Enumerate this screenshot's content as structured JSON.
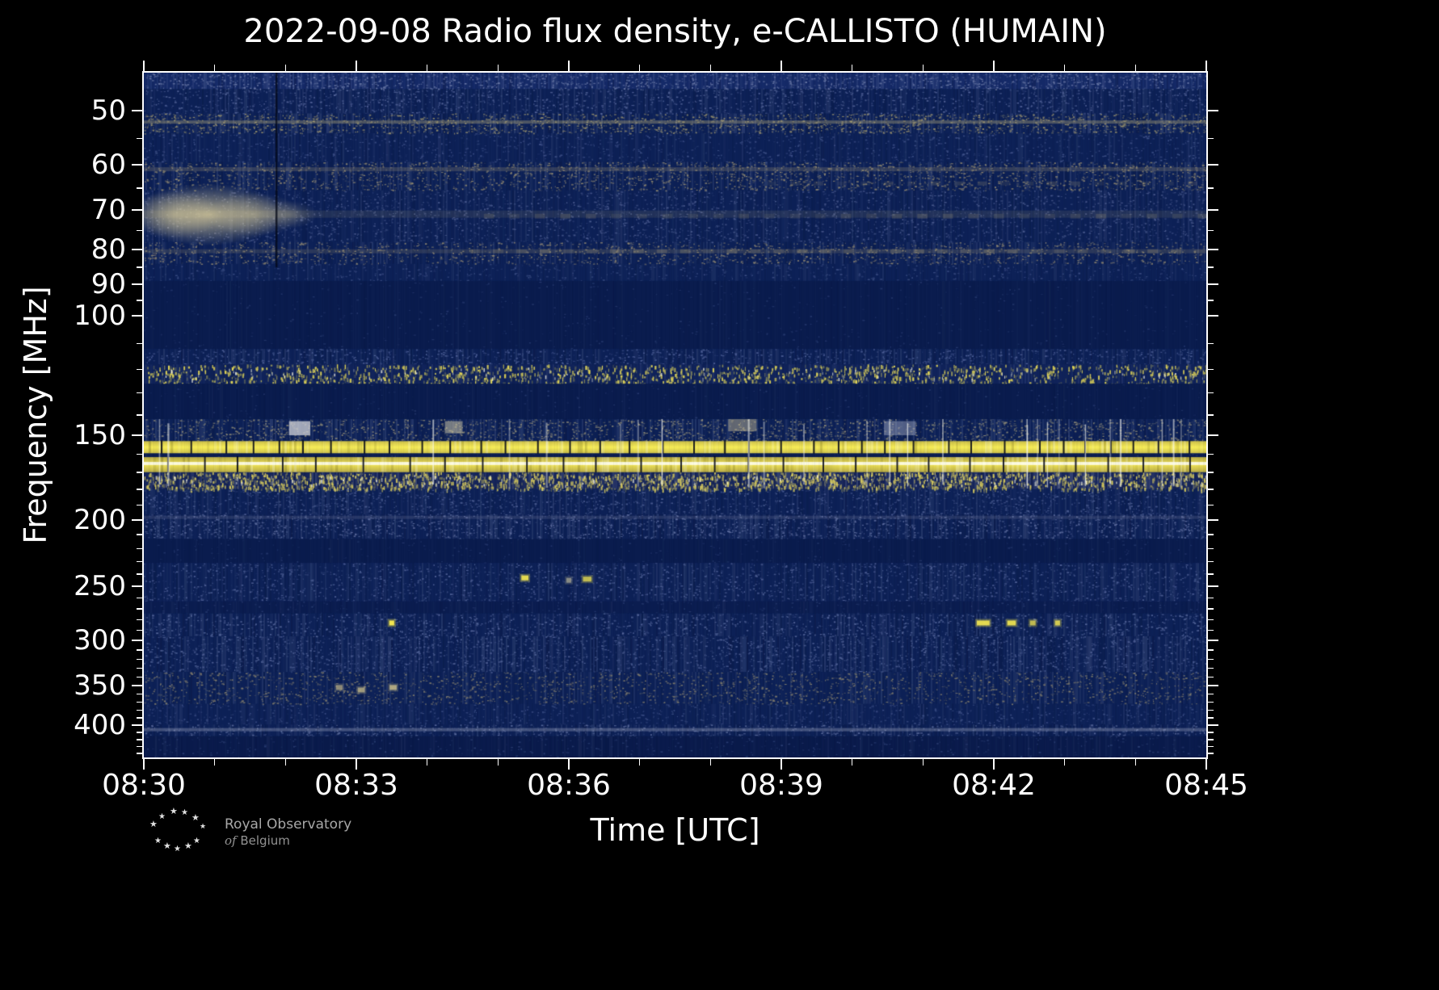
{
  "chart_data": {
    "type": "heatmap",
    "variant": "radio-spectrogram",
    "title": "2022-09-08 Radio flux density, e-CALLISTO (HUMAIN)",
    "xlabel": "Time [UTC]",
    "ylabel": "Frequency [MHz]",
    "x_ticks": [
      "08:30",
      "08:33",
      "08:36",
      "08:39",
      "08:42",
      "08:45"
    ],
    "x_minor_ticks_min": [
      1,
      2,
      4,
      5,
      7,
      8,
      10,
      11,
      13,
      14
    ],
    "duration_min": 15,
    "time_range_utc": [
      "08:30",
      "08:45"
    ],
    "y_ticks": [
      50,
      60,
      70,
      80,
      90,
      100,
      150,
      200,
      250,
      300,
      350,
      400
    ],
    "y_minor_ticks": [
      55,
      65,
      75,
      85,
      95,
      110,
      120,
      130,
      140,
      160,
      170,
      180,
      190,
      210,
      220,
      230,
      240,
      260,
      270,
      280,
      290,
      310,
      320,
      330,
      340,
      360,
      370,
      380,
      390,
      410,
      420,
      430,
      440
    ],
    "y_scale": "log",
    "y_axis_inverted": true,
    "freq_range_mhz": [
      44,
      446
    ],
    "grid": false,
    "legend": "none",
    "colors": {
      "figure_background": "#000000",
      "plot_base": "#0d2157",
      "quiet_band": "#0a1c4e",
      "noise_blue": "#51629a",
      "noise_tan": "#8f8770",
      "bright_tan": "#d8cb9b",
      "rfi_yellow": "#f7ed58",
      "frame": "#ffffff",
      "text": "#ffffff"
    },
    "rfi_lines_mhz": [
      52,
      61,
      71,
      80,
      120,
      156,
      165,
      175,
      243,
      283,
      406
    ],
    "bands": [
      {
        "f1": 44,
        "f2": 46.5,
        "style": "noise",
        "base": "#152a68",
        "speckle": "#6d7ba8",
        "density": 0.5,
        "col": 0.4,
        "colA": 0.12
      },
      {
        "f1": 46.5,
        "f2": 50.5,
        "style": "noise",
        "speckle": "#55659a",
        "density": 0.32,
        "col": 0.3,
        "colA": 0.09
      },
      {
        "f1": 50.5,
        "f2": 54,
        "style": "noise",
        "speckle": "#9a926e",
        "density": 0.5,
        "col": 0.38,
        "colA": 0.13,
        "hline": {
          "f": 52,
          "color": "#b0a678",
          "alpha": 0.4,
          "h": 4
        }
      },
      {
        "f1": 54,
        "f2": 59.5,
        "style": "noise",
        "speckle": "#41538a",
        "density": 0.22,
        "col": 0.26,
        "colA": 0.07
      },
      {
        "f1": 59.5,
        "f2": 65.5,
        "style": "noise",
        "speckle": "#8f8770",
        "density": 0.42,
        "col": 0.36,
        "colA": 0.12,
        "hline": {
          "f": 61,
          "color": "#9a9172",
          "alpha": 0.28,
          "h": 5
        }
      },
      {
        "f1": 65.5,
        "f2": 78,
        "style": "noise",
        "speckle": "#4a5a8e",
        "density": 0.28,
        "col": 0.3,
        "colA": 0.08,
        "hline": {
          "f": 71,
          "color": "#988f6f",
          "alpha": 0.16,
          "h": 9
        }
      },
      {
        "f1": 78,
        "f2": 84,
        "style": "noise",
        "speckle": "#8b8370",
        "density": 0.36,
        "col": 0.32,
        "colA": 0.1,
        "hline": {
          "f": 80.5,
          "color": "#958c6e",
          "alpha": 0.22,
          "h": 5
        }
      },
      {
        "f1": 84,
        "f2": 89,
        "style": "noise",
        "speckle": "#3c4e84",
        "density": 0.2,
        "col": 0.24,
        "colA": 0.06
      },
      {
        "f1": 89,
        "f2": 112,
        "style": "quiet",
        "base": "#0a1c4e",
        "speckle": "#25386d",
        "density": 0.05,
        "col": 0.14,
        "colA": 0.03
      },
      {
        "f1": 112,
        "f2": 118,
        "style": "noise",
        "speckle": "#51629a",
        "density": 0.33,
        "col": 0.34,
        "colA": 0.1
      },
      {
        "f1": 118,
        "f2": 126,
        "style": "rfi-speckle",
        "base": "#10235a",
        "speckle": "#e8db58",
        "density": 0.3,
        "col": 0.3,
        "colA": 0.08
      },
      {
        "f1": 126,
        "f2": 142,
        "style": "quiet",
        "base": "#0a1c4e",
        "speckle": "#25386d",
        "density": 0.05,
        "col": 0.14,
        "colA": 0.03
      },
      {
        "f1": 142,
        "f2": 153,
        "style": "noise",
        "speckle": "#8f8b76",
        "density": 0.45,
        "col": 0.4,
        "colA": 0.12
      },
      {
        "f1": 153,
        "f2": 159.5,
        "style": "solid-yellow",
        "core": "#f7ed58",
        "edge": "#cdc04a",
        "tick_period_min": 0.4,
        "tick_w": 2
      },
      {
        "f1": 159.5,
        "f2": 161.5,
        "style": "quiet",
        "base": "#0a1c50",
        "speckle": "#25386d",
        "density": 0.04,
        "col": 0.1,
        "colA": 0.03
      },
      {
        "f1": 161.5,
        "f2": 170,
        "style": "solid-yellow",
        "core": "#efe356",
        "edge": "#b8ab48",
        "tick_period_min": 0.55,
        "tick_w": 2,
        "white_core": true
      },
      {
        "f1": 170,
        "f2": 180,
        "style": "rfi-speckle",
        "base": "#17265a",
        "speckle": "#d8cb5e",
        "density": 0.5,
        "col": 0.45,
        "colA": 0.14
      },
      {
        "f1": 180,
        "f2": 196,
        "style": "noise",
        "speckle": "#4c5d92",
        "density": 0.34,
        "col": 0.34,
        "colA": 0.09
      },
      {
        "f1": 196,
        "f2": 213,
        "style": "noise",
        "speckle": "#5d6c9e",
        "density": 0.4,
        "col": 0.4,
        "colA": 0.11,
        "hline": {
          "f": 198,
          "color": "#8289aa",
          "alpha": 0.22,
          "h": 4
        }
      },
      {
        "f1": 213,
        "f2": 231,
        "style": "quiet",
        "base": "#0a1c4e",
        "speckle": "#25386d",
        "density": 0.06,
        "col": 0.15,
        "colA": 0.03
      },
      {
        "f1": 231,
        "f2": 263,
        "style": "noise",
        "speckle": "#4f6096",
        "density": 0.3,
        "col": 0.34,
        "colA": 0.09
      },
      {
        "f1": 263,
        "f2": 274,
        "style": "quiet",
        "base": "#0b1d50",
        "speckle": "#2a3d72",
        "density": 0.1,
        "col": 0.2,
        "colA": 0.04
      },
      {
        "f1": 274,
        "f2": 296,
        "style": "noise",
        "speckle": "#56679c",
        "density": 0.34,
        "col": 0.35,
        "colA": 0.1
      },
      {
        "f1": 296,
        "f2": 334,
        "style": "noise",
        "speckle": "#4e5f94",
        "density": 0.38,
        "col": 0.4,
        "colA": 0.11
      },
      {
        "f1": 334,
        "f2": 372,
        "style": "noise",
        "speckle": "#827d6c",
        "density": 0.34,
        "col": 0.35,
        "colA": 0.1
      },
      {
        "f1": 372,
        "f2": 399,
        "style": "noise",
        "speckle": "#3e5087",
        "density": 0.24,
        "col": 0.3,
        "colA": 0.07
      },
      {
        "f1": 399,
        "f2": 415,
        "style": "noise",
        "speckle": "#5a6a9c",
        "density": 0.34,
        "col": 0.35,
        "colA": 0.1,
        "hline": {
          "f": 406,
          "color": "#9ba3be",
          "alpha": 0.38,
          "h": 4
        }
      },
      {
        "f1": 415,
        "f2": 446,
        "style": "quiet",
        "base": "#0a1b4c",
        "speckle": "#2c3f74",
        "density": 0.12,
        "col": 0.2,
        "colA": 0.05
      }
    ],
    "features": {
      "blob": {
        "t1": 0.05,
        "t2": 2.3,
        "f1": 64,
        "f2": 79,
        "color": "#d8cb9b",
        "ellipses": [
          [
            0.9,
            95,
            1.0,
            0.8
          ],
          [
            1.55,
            60,
            0.7,
            0.5
          ],
          [
            0.45,
            55,
            0.75,
            0.55
          ],
          [
            2.05,
            35,
            0.45,
            0.3
          ]
        ]
      },
      "dark_vline": {
        "t": 1.87,
        "f1": 44,
        "f2": 85,
        "alpha": 0.75
      },
      "white_streaks": {
        "f1": 142,
        "f2": 180,
        "count": 26,
        "alpha_min": 0.25,
        "alpha_max": 0.85
      },
      "dots": [
        {
          "t": 5.38,
          "f": 243,
          "w": 0.1,
          "bright": 0.9,
          "color": "#f2e650"
        },
        {
          "t": 6.0,
          "f": 245,
          "w": 0.07,
          "bright": 0.55,
          "color": "#cfc9a0"
        },
        {
          "t": 6.26,
          "f": 244,
          "w": 0.12,
          "bright": 0.7,
          "color": "#f2e650"
        },
        {
          "t": 3.5,
          "f": 283,
          "w": 0.07,
          "bright": 1.0,
          "color": "#f2e650"
        },
        {
          "t": 11.85,
          "f": 283,
          "w": 0.18,
          "bright": 0.9,
          "color": "#f2e650"
        },
        {
          "t": 12.25,
          "f": 283,
          "w": 0.12,
          "bright": 0.9,
          "color": "#f2e650"
        },
        {
          "t": 12.55,
          "f": 283,
          "w": 0.08,
          "bright": 0.7,
          "color": "#f2e650"
        },
        {
          "t": 12.9,
          "f": 283,
          "w": 0.07,
          "bright": 0.8,
          "color": "#f2e650"
        },
        {
          "t": 2.76,
          "f": 352,
          "w": 0.09,
          "bright": 0.6,
          "color": "#c9bd8a"
        },
        {
          "t": 3.07,
          "f": 355,
          "w": 0.1,
          "bright": 0.7,
          "color": "#c9bd8a"
        },
        {
          "t": 3.52,
          "f": 352,
          "w": 0.1,
          "bright": 0.8,
          "color": "#c9bd8a"
        }
      ],
      "dash_rows": [
        {
          "f": 80.5,
          "t1": 4.6,
          "t2": 15,
          "period": 0.33,
          "duty": 0.45,
          "color": "#8f8870",
          "alpha": 0.3,
          "h": 5
        },
        {
          "f": 71.5,
          "t1": 4.8,
          "t2": 15,
          "period": 0.36,
          "duty": 0.4,
          "color": "#8f8870",
          "alpha": 0.22,
          "h": 6
        },
        {
          "f": 64,
          "t1": 8.8,
          "t2": 15,
          "period": 0.33,
          "duty": 0.4,
          "color": "#8a846e",
          "alpha": 0.2,
          "h": 5
        }
      ],
      "bright_patches": [
        {
          "t1": 2.05,
          "t2": 2.35,
          "f1": 143,
          "f2": 150,
          "color": "#d3d4da",
          "alpha": 0.75
        },
        {
          "t1": 4.25,
          "t2": 4.5,
          "f1": 143,
          "f2": 149,
          "color": "#c6c0a0",
          "alpha": 0.55
        },
        {
          "t1": 8.25,
          "t2": 8.65,
          "f1": 142,
          "f2": 148,
          "color": "#b7b091",
          "alpha": 0.5
        },
        {
          "t1": 10.45,
          "t2": 10.9,
          "f1": 143,
          "f2": 150,
          "color": "#a7adc4",
          "alpha": 0.45
        }
      ]
    }
  },
  "logo": {
    "line1": "Royal Observatory",
    "line2_italic": "of",
    "line2": "Belgium",
    "text_color": "#a8a8a8"
  },
  "icons": {
    "star": "★"
  }
}
